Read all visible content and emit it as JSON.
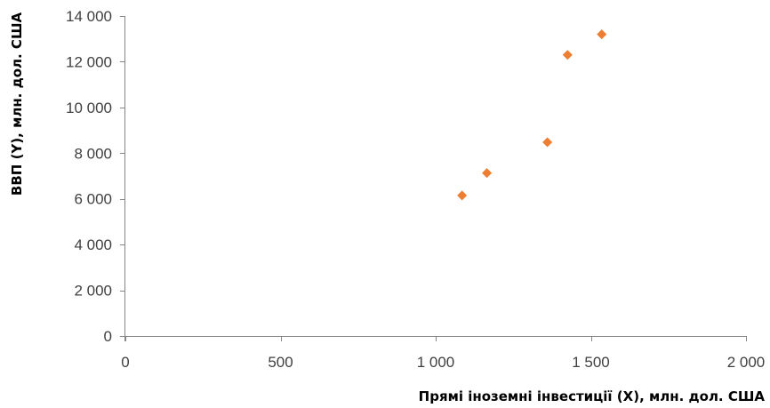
{
  "chart_data": {
    "type": "scatter",
    "title": "",
    "xlabel": "Прямі іноземні інвестиції (X), млн. дол. США",
    "ylabel": "ВВП (Y), млн. дол. США",
    "xlim": [
      0,
      2000
    ],
    "ylim": [
      0,
      14000
    ],
    "x_ticks": [
      0,
      500,
      1000,
      1500,
      2000
    ],
    "x_tick_labels": [
      "0",
      "500",
      "1 000",
      "1 500",
      "2 000"
    ],
    "y_ticks": [
      0,
      2000,
      4000,
      6000,
      8000,
      10000,
      12000,
      14000
    ],
    "y_tick_labels": [
      "0",
      "2 000",
      "4 000",
      "6 000",
      "8 000",
      "10 000",
      "12 000",
      "14 000"
    ],
    "grid": false,
    "legend": "none",
    "marker": "diamond",
    "series": [
      {
        "color": "#ED7D31",
        "points": [
          {
            "x": 1085,
            "y": 6150
          },
          {
            "x": 1165,
            "y": 7130
          },
          {
            "x": 1360,
            "y": 8480
          },
          {
            "x": 1425,
            "y": 12300
          },
          {
            "x": 1535,
            "y": 13200
          }
        ]
      }
    ]
  }
}
